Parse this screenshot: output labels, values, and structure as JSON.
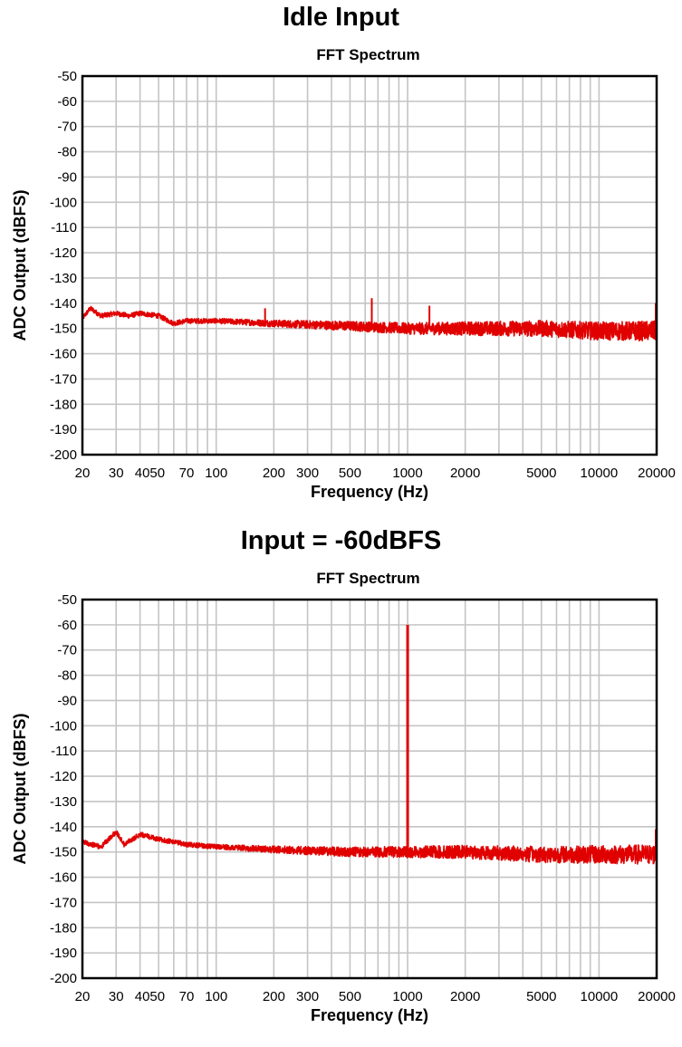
{
  "chart_data": [
    {
      "type": "line",
      "title": "Idle Input",
      "subtitle": "FFT Spectrum",
      "xlabel": "Frequency (Hz)",
      "ylabel": "ADC Output (dBFS)",
      "xscale": "log",
      "xlim": [
        20,
        20000
      ],
      "ylim": [
        -200,
        -50
      ],
      "grid": true,
      "x_tick_labels": [
        "20",
        "30",
        "4050",
        "70",
        "100",
        "200",
        "300",
        "500",
        "1000",
        "2000",
        "5000",
        "10000",
        "20000"
      ],
      "y_tick_labels": [
        "-50",
        "-60",
        "-70",
        "-80",
        "-90",
        "-100",
        "-110",
        "-120",
        "-130",
        "-140",
        "-150",
        "-160",
        "-170",
        "-180",
        "-190",
        "-200"
      ],
      "line_color": "#e00000",
      "noise_floor": [
        [
          20,
          -146
        ],
        [
          22,
          -142
        ],
        [
          25,
          -145
        ],
        [
          30,
          -144
        ],
        [
          35,
          -145
        ],
        [
          40,
          -144
        ],
        [
          50,
          -145
        ],
        [
          60,
          -148
        ],
        [
          70,
          -147
        ],
        [
          100,
          -147
        ],
        [
          200,
          -148
        ],
        [
          500,
          -149
        ],
        [
          1000,
          -150
        ],
        [
          2000,
          -150
        ],
        [
          5000,
          -150
        ],
        [
          10000,
          -151
        ],
        [
          20000,
          -151
        ]
      ],
      "noise_ripple_db": [
        2,
        8
      ],
      "peaks": [
        [
          180,
          -142
        ],
        [
          650,
          -138
        ],
        [
          1300,
          -141
        ],
        [
          19800,
          -140
        ]
      ],
      "signal": null
    },
    {
      "type": "line",
      "title": "Input = -60dBFS",
      "subtitle": "FFT Spectrum",
      "xlabel": "Frequency (Hz)",
      "ylabel": "ADC Output (dBFS)",
      "xscale": "log",
      "xlim": [
        20,
        20000
      ],
      "ylim": [
        -200,
        -50
      ],
      "grid": true,
      "x_tick_labels": [
        "20",
        "30",
        "4050",
        "70",
        "100",
        "200",
        "300",
        "500",
        "1000",
        "2000",
        "5000",
        "10000",
        "20000"
      ],
      "y_tick_labels": [
        "-50",
        "-60",
        "-70",
        "-80",
        "-90",
        "-100",
        "-110",
        "-120",
        "-130",
        "-140",
        "-150",
        "-160",
        "-170",
        "-180",
        "-190",
        "-200"
      ],
      "line_color": "#e00000",
      "noise_floor": [
        [
          20,
          -146
        ],
        [
          25,
          -148
        ],
        [
          30,
          -142
        ],
        [
          33,
          -147
        ],
        [
          40,
          -143
        ],
        [
          50,
          -145
        ],
        [
          70,
          -147
        ],
        [
          100,
          -148
        ],
        [
          200,
          -149
        ],
        [
          500,
          -150
        ],
        [
          1000,
          -150
        ],
        [
          2000,
          -150
        ],
        [
          5000,
          -151
        ],
        [
          10000,
          -151
        ],
        [
          20000,
          -151
        ]
      ],
      "noise_ripple_db": [
        2,
        8
      ],
      "peaks": [
        [
          19800,
          -141
        ]
      ],
      "signal": [
        1000,
        -60
      ]
    }
  ]
}
